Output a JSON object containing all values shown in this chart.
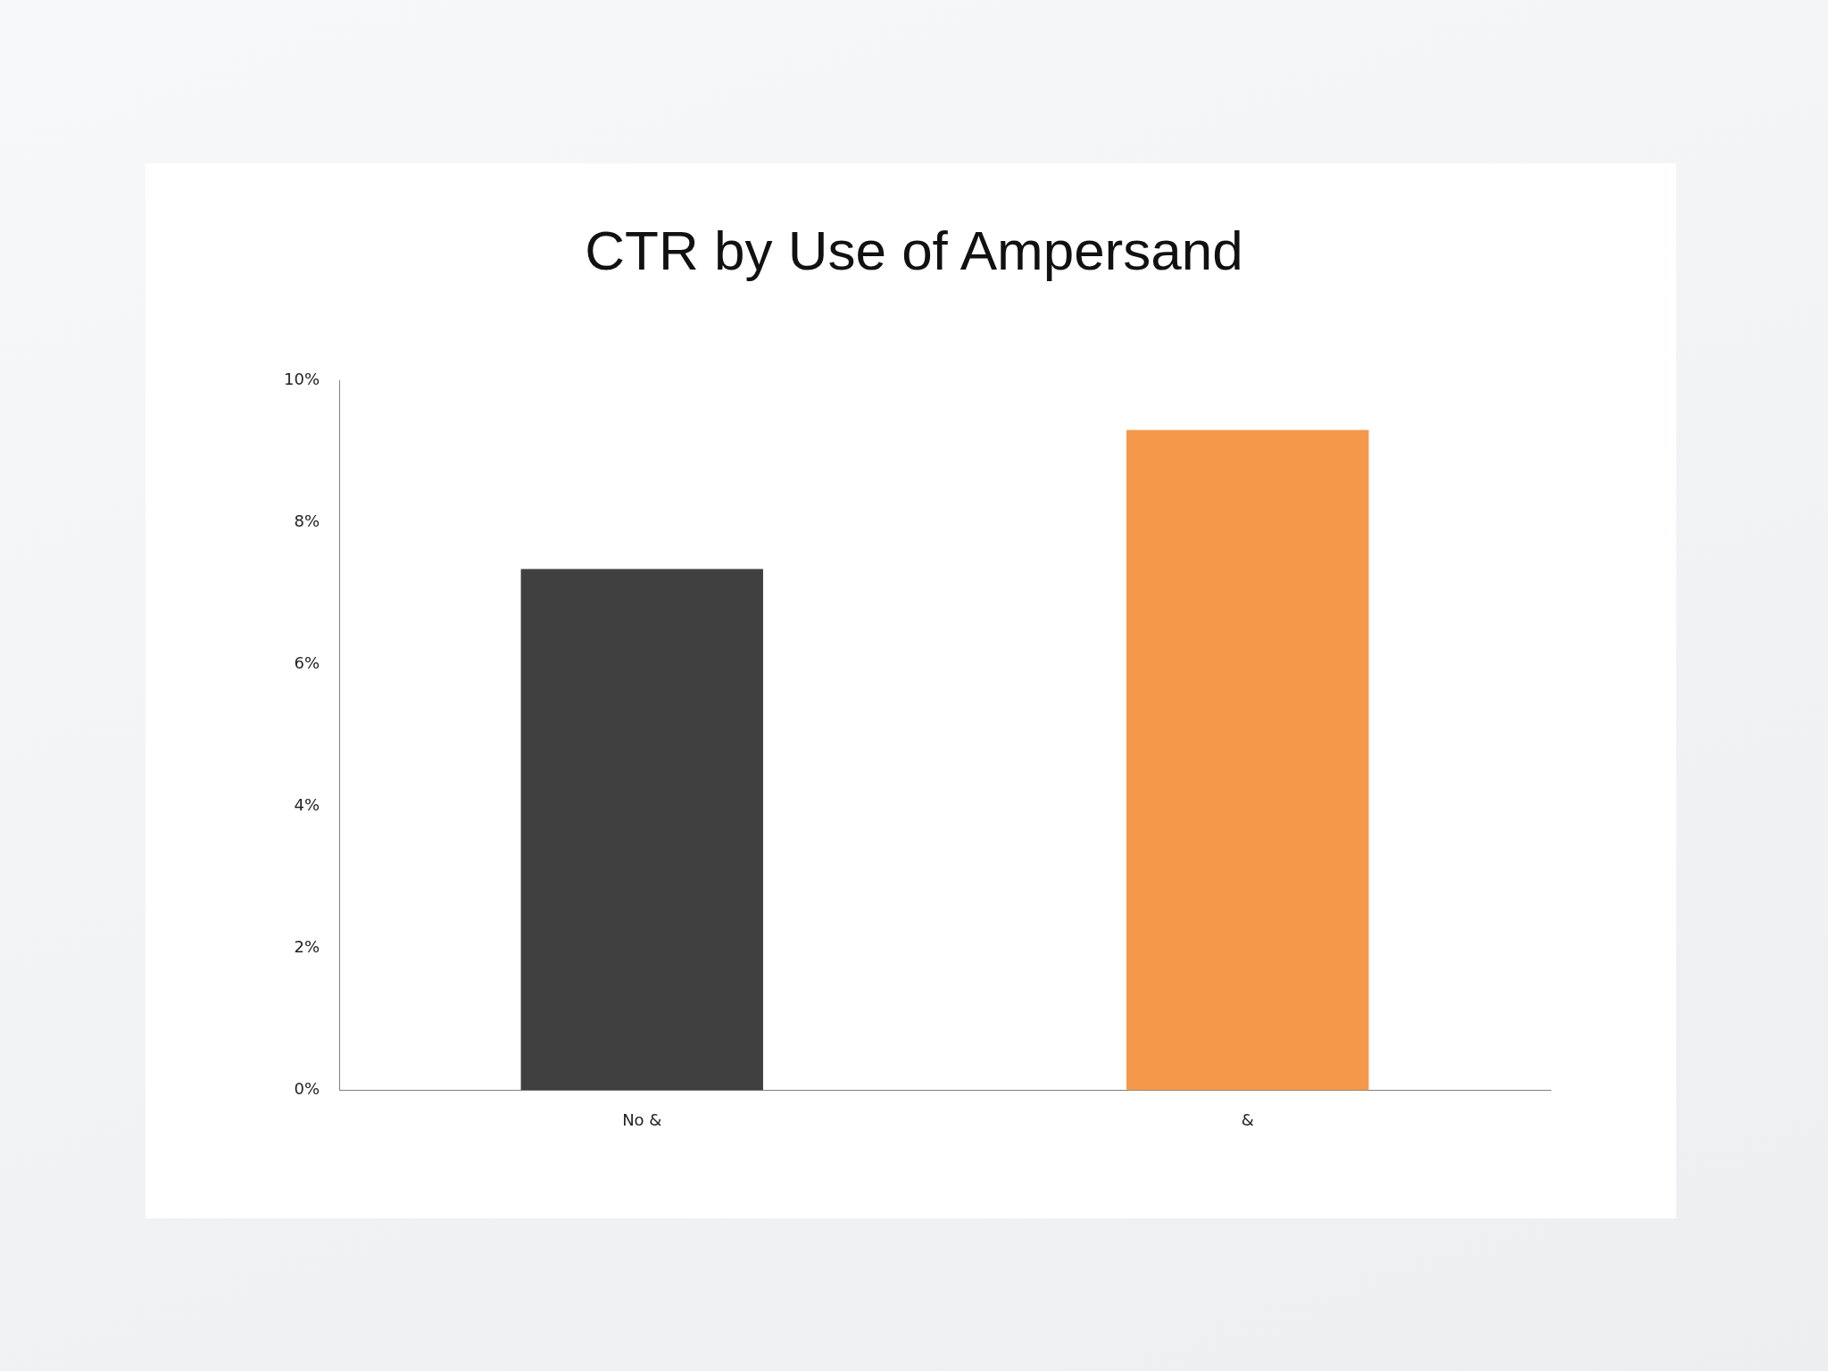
{
  "chart_data": {
    "type": "bar",
    "title": "CTR by Use of Ampersand",
    "categories": [
      "No &",
      "&"
    ],
    "values": [
      7.34,
      9.3
    ],
    "colors": [
      "#404040",
      "#f59849"
    ],
    "ylim": [
      0,
      10
    ],
    "yticks": [
      {
        "value": 0,
        "label": "0%"
      },
      {
        "value": 2,
        "label": "2%"
      },
      {
        "value": 4,
        "label": "4%"
      },
      {
        "value": 6,
        "label": "6%"
      },
      {
        "value": 8,
        "label": "8%"
      },
      {
        "value": 10,
        "label": "10%"
      }
    ],
    "grid": false,
    "legend": false
  }
}
